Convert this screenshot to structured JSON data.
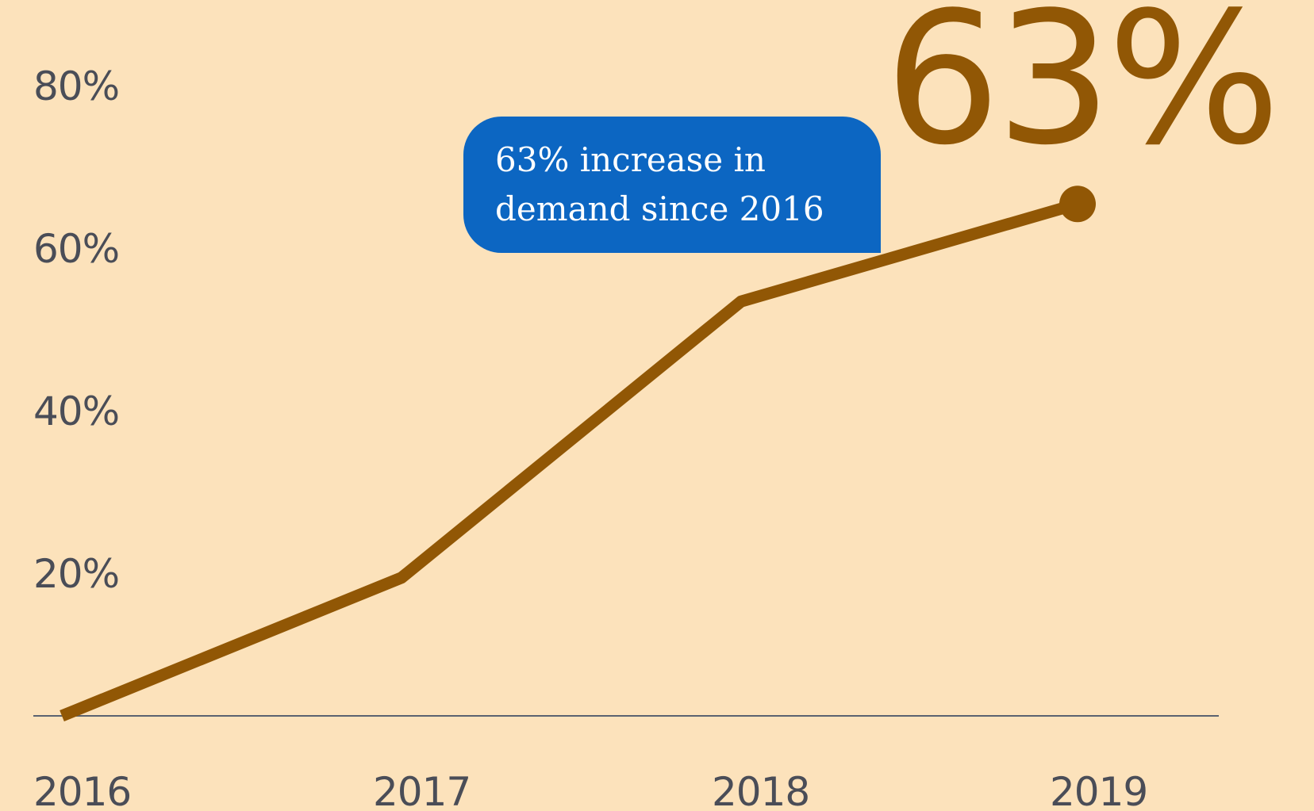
{
  "chart_data": {
    "type": "line",
    "x": [
      "2016",
      "2017",
      "2018",
      "2019"
    ],
    "series": [
      {
        "values": [
          0,
          17,
          51,
          63
        ]
      }
    ],
    "y_ticks": [
      "20%",
      "40%",
      "60%",
      "80%"
    ],
    "ylim": [
      0,
      80
    ],
    "grid": false,
    "highlight_value": "63%",
    "annotation": {
      "line1": "63% increase in",
      "line2": "demand since 2016"
    },
    "colors": {
      "background": "#fce2bb",
      "line": "#915705",
      "axis": "#5a6270",
      "tick_text": "#4a4d57",
      "callout_bg": "#0c66c2",
      "callout_text": "#ffffff"
    }
  }
}
